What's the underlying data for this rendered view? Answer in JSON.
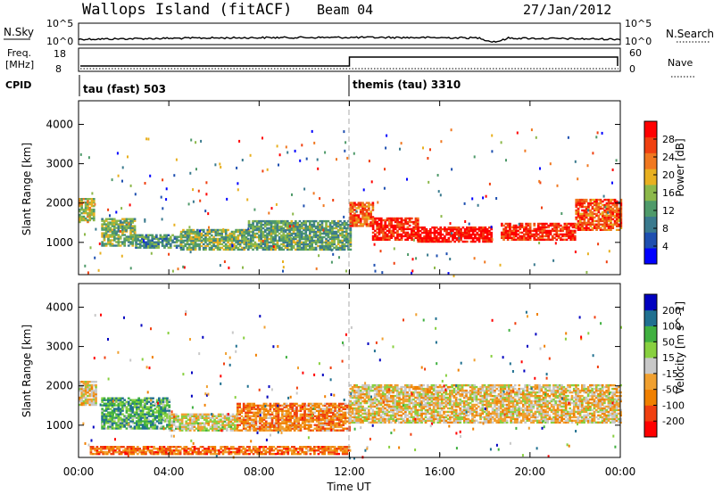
{
  "header": {
    "station": "Wallops Island (fitACF)",
    "beam": "Beam 04",
    "date": "27/Jan/2012"
  },
  "top_panels": {
    "nsky_label": "N.Sky",
    "nsky_ticks": [
      "10^5",
      "10^0"
    ],
    "nsearch_label": "N.Search",
    "nsearch_ticks": [
      "10^5",
      "10^0"
    ],
    "freq_label": "Freq.",
    "freq_unit": "[MHz]",
    "freq_ticks": [
      "18",
      "8"
    ],
    "nave_label": "Nave",
    "nave_ticks": [
      "60",
      "0"
    ],
    "cpid_label": "CPID",
    "cpid_segments": [
      {
        "name": "tau (fast) 503",
        "start_hour": 0,
        "end_hour": 12
      },
      {
        "name": "themis (tau) 3310",
        "start_hour": 12,
        "end_hour": 24
      }
    ]
  },
  "chart_data": [
    {
      "type": "heatmap",
      "title": "",
      "quantity": "Power",
      "ylabel": "Slant Range [km]",
      "xlabel": "",
      "x_range_hours": [
        0,
        24
      ],
      "ylim": [
        180,
        4600
      ],
      "yticks": [
        1000,
        2000,
        3000,
        4000
      ],
      "colorbar": {
        "label": "Power [dB]",
        "ticks": [
          "4",
          "8",
          "12",
          "16",
          "20",
          "24",
          "28"
        ],
        "colors": [
          "#0000ff",
          "#1e4fb0",
          "#3a7a8e",
          "#4f9a6a",
          "#8cb84a",
          "#e8b020",
          "#f07820",
          "#f04010",
          "#ff0000"
        ]
      },
      "bands": [
        {
          "h0": 0.0,
          "h1": 0.7,
          "r0": 1500,
          "r1": 2100,
          "level": 0.55
        },
        {
          "h0": 1.0,
          "h1": 2.5,
          "r0": 900,
          "r1": 1600,
          "level": 0.45
        },
        {
          "h0": 2.5,
          "h1": 4.5,
          "r0": 850,
          "r1": 1200,
          "level": 0.35
        },
        {
          "h0": 4.5,
          "h1": 7.5,
          "r0": 800,
          "r1": 1300,
          "level": 0.45
        },
        {
          "h0": 7.5,
          "h1": 12.0,
          "r0": 800,
          "r1": 1550,
          "level": 0.4
        },
        {
          "h0": 12.0,
          "h1": 13.0,
          "r0": 1400,
          "r1": 2000,
          "level": 0.8
        },
        {
          "h0": 13.0,
          "h1": 15.0,
          "r0": 1050,
          "r1": 1600,
          "level": 0.9
        },
        {
          "h0": 15.0,
          "h1": 18.3,
          "r0": 1000,
          "r1": 1400,
          "level": 0.95
        },
        {
          "h0": 18.7,
          "h1": 22.0,
          "r0": 1050,
          "r1": 1500,
          "level": 0.9
        },
        {
          "h0": 22.0,
          "h1": 24.0,
          "r0": 1300,
          "r1": 2100,
          "level": 0.8
        }
      ]
    },
    {
      "type": "heatmap",
      "title": "",
      "quantity": "Velocity",
      "ylabel": "Slant Range [km]",
      "xlabel": "Time UT",
      "x_range_hours": [
        0,
        24
      ],
      "ylim": [
        180,
        4600
      ],
      "yticks": [
        1000,
        2000,
        3000,
        4000
      ],
      "xticks": [
        "00:00",
        "04:00",
        "08:00",
        "12:00",
        "16:00",
        "20:00",
        "00:00"
      ],
      "colorbar": {
        "label": "Velocity [m s^-1]",
        "ticks": [
          "-200",
          "-100",
          "-50",
          "-15",
          "15",
          "50",
          "100",
          "200"
        ],
        "colors": [
          "#ff0000",
          "#f04010",
          "#f08000",
          "#f0a030",
          "#c8c8c8",
          "#88d040",
          "#40b040",
          "#207090",
          "#0000c0"
        ]
      },
      "bands": [
        {
          "h0": 0.0,
          "h1": 0.8,
          "r0": 1500,
          "r1": 2100,
          "level": 0.45
        },
        {
          "h0": 1.0,
          "h1": 4.0,
          "r0": 900,
          "r1": 1700,
          "level": 0.7
        },
        {
          "h0": 4.0,
          "h1": 7.0,
          "r0": 850,
          "r1": 1300,
          "level": 0.5
        },
        {
          "h0": 7.0,
          "h1": 12.0,
          "r0": 850,
          "r1": 1550,
          "level": 0.3
        },
        {
          "h0": 0.5,
          "h1": 12.0,
          "r0": 250,
          "r1": 450,
          "level": 0.25
        },
        {
          "h0": 12.0,
          "h1": 24.0,
          "r0": 1050,
          "r1": 2000,
          "level": 0.45
        }
      ]
    }
  ]
}
